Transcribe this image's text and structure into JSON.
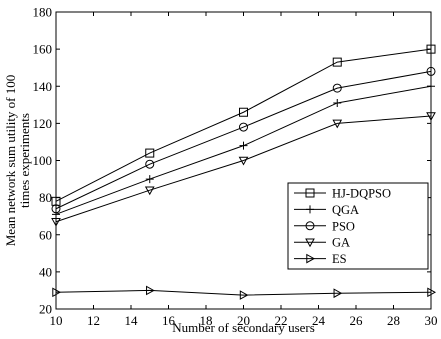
{
  "chart_data": {
    "type": "line",
    "xlabel": "Number of secondary users",
    "ylabel_lines": [
      "Mean network sum utility of 100",
      "times experiments"
    ],
    "x": [
      10,
      15,
      20,
      25,
      30
    ],
    "xlim": [
      10,
      30
    ],
    "ylim": [
      20,
      180
    ],
    "xticks": [
      10,
      12,
      14,
      16,
      18,
      20,
      22,
      24,
      26,
      28,
      30
    ],
    "yticks": [
      20,
      40,
      60,
      80,
      100,
      120,
      140,
      160,
      180
    ],
    "legend_position": "center-right",
    "series": [
      {
        "name": "HJ-DQPSO",
        "marker": "square",
        "values": [
          78,
          104,
          126,
          153,
          160
        ]
      },
      {
        "name": "QGA",
        "marker": "plus",
        "values": [
          71,
          90,
          108,
          131,
          140
        ]
      },
      {
        "name": "PSO",
        "marker": "circle",
        "values": [
          74,
          98,
          118,
          139,
          148
        ]
      },
      {
        "name": "GA",
        "marker": "triangle-down",
        "values": [
          67,
          84,
          100,
          120,
          124
        ]
      },
      {
        "name": "ES",
        "marker": "triangle-right",
        "values": [
          29,
          30,
          27.5,
          28.5,
          29
        ]
      }
    ]
  }
}
